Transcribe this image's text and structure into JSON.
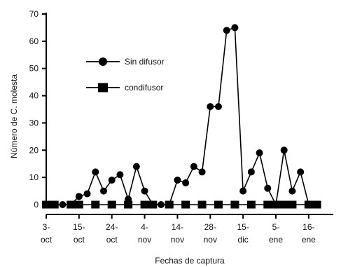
{
  "chart_data": {
    "type": "line",
    "ylabel": "Número de C. molesta",
    "xlabel": "Fechas de captura",
    "ylim": [
      0,
      70
    ],
    "yticks": [
      0,
      10,
      20,
      30,
      40,
      50,
      60,
      70
    ],
    "xlim": [
      0,
      35
    ],
    "x_tick_labels": [
      {
        "x": 0,
        "line1": "3-",
        "line2": "oct"
      },
      {
        "x": 4,
        "line1": "15-",
        "line2": "oct"
      },
      {
        "x": 8,
        "line1": "24-",
        "line2": "oct"
      },
      {
        "x": 12,
        "line1": "4-",
        "line2": "nov"
      },
      {
        "x": 16,
        "line1": "14-",
        "line2": "nov"
      },
      {
        "x": 20,
        "line1": "28-",
        "line2": "nov"
      },
      {
        "x": 24,
        "line1": "15-",
        "line2": "dic"
      },
      {
        "x": 28,
        "line1": "5-",
        "line2": "ene"
      },
      {
        "x": 32,
        "line1": "16-",
        "line2": "ene"
      }
    ],
    "legend_position": "upper-left",
    "series": [
      {
        "name": "Sin difusor",
        "marker": "circle",
        "x": [
          0,
          1,
          2,
          3,
          4,
          5,
          6,
          7,
          8,
          9,
          10,
          11,
          12,
          13,
          14,
          15,
          16,
          17,
          18,
          19,
          20,
          21,
          22,
          23,
          24,
          25,
          26,
          27,
          28,
          29,
          30,
          31,
          32,
          33
        ],
        "values": [
          0,
          0,
          0,
          0,
          3,
          4,
          12,
          5,
          9,
          11,
          2,
          14,
          5,
          0,
          0,
          0,
          9,
          8,
          14,
          12,
          36,
          36,
          64,
          65,
          5,
          12,
          19,
          6,
          0,
          20,
          5,
          12,
          0,
          0
        ]
      },
      {
        "name": "condifusor",
        "marker": "square",
        "x": [
          0,
          1,
          3,
          4,
          6,
          8,
          10,
          12,
          13,
          15,
          17,
          19,
          21,
          23,
          25,
          27,
          28,
          29,
          30,
          32,
          33
        ],
        "values": [
          0,
          0,
          0,
          0,
          0,
          0,
          0,
          0,
          0,
          0,
          0,
          0,
          0,
          0,
          0,
          0,
          0,
          0,
          0,
          0,
          0
        ]
      }
    ]
  }
}
